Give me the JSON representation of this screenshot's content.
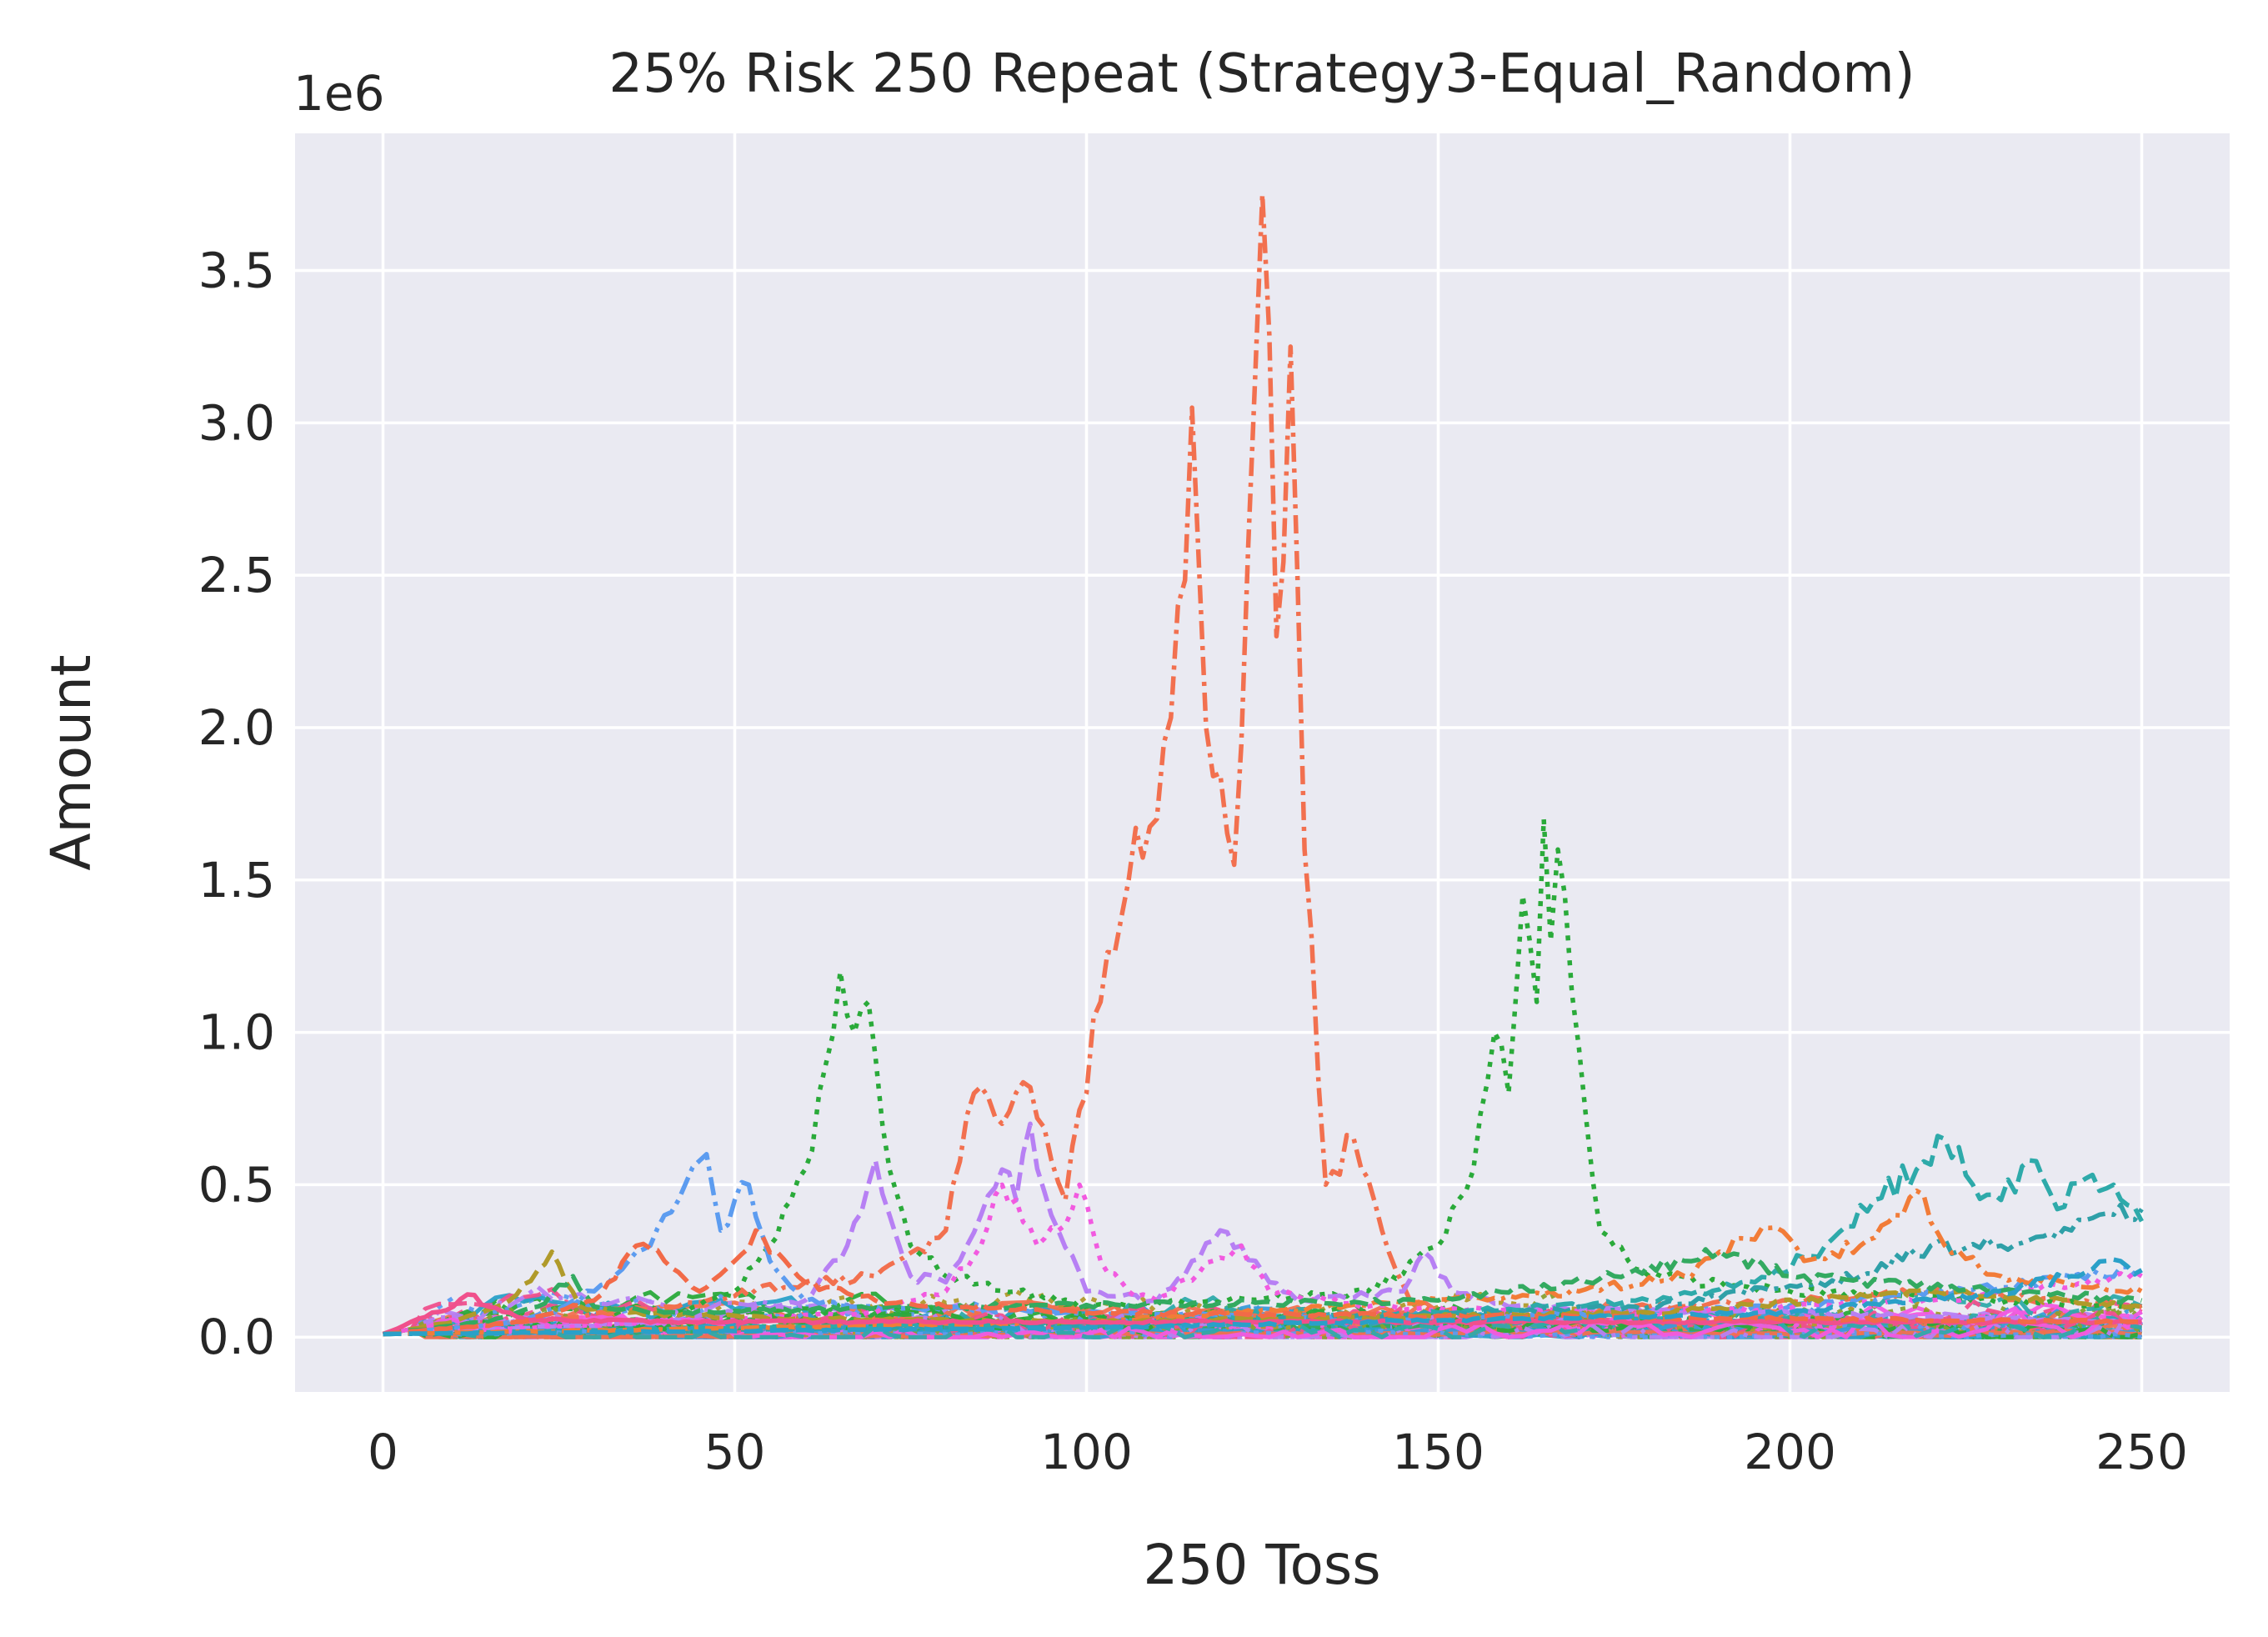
{
  "chart_data": {
    "type": "line",
    "title": "25% Risk 250 Repeat (Strategy3-Equal_Random)",
    "xlabel": "250 Toss",
    "ylabel": "Amount",
    "y_offset_label": "1e6",
    "xlim": [
      -12.5,
      262.5
    ],
    "ylim": [
      -0.18,
      3.95
    ],
    "xticks": [
      0,
      50,
      100,
      150,
      200,
      250
    ],
    "xtick_labels": [
      "0",
      "50",
      "100",
      "150",
      "200",
      "250"
    ],
    "yticks": [
      0.0,
      0.5,
      1.0,
      1.5,
      2.0,
      2.5,
      3.0,
      3.5
    ],
    "ytick_labels": [
      "0.0",
      "0.5",
      "1.0",
      "1.5",
      "2.0",
      "2.5",
      "3.0",
      "3.5"
    ],
    "y_unit_multiplier": 1000000,
    "grid": true,
    "legend": "none",
    "background": "#eaeaf2",
    "n_series_shown": 250,
    "highlighted_series": [
      {
        "color": "#f2704f",
        "dash": "dashdot",
        "x": [
          0,
          20,
          40,
          60,
          70,
          80,
          84,
          88,
          92,
          97,
          102,
          106,
          110,
          113,
          115,
          117,
          119,
          121,
          123,
          125,
          127,
          129,
          131,
          134,
          138,
          142,
          146,
          150,
          160,
          180,
          200,
          220,
          250
        ],
        "y": [
          0.01,
          0.05,
          0.1,
          0.18,
          0.2,
          0.35,
          0.8,
          0.7,
          0.82,
          0.45,
          1.1,
          1.5,
          1.7,
          2.4,
          3.05,
          2.0,
          1.85,
          1.55,
          2.6,
          3.75,
          2.3,
          3.25,
          1.6,
          0.5,
          0.65,
          0.35,
          0.12,
          0.08,
          0.06,
          0.1,
          0.12,
          0.15,
          0.1
        ]
      },
      {
        "color": "#2aaa3a",
        "dash": "dotted",
        "x": [
          0,
          20,
          40,
          50,
          55,
          60,
          63,
          65,
          67,
          69,
          72,
          75,
          80,
          90,
          100,
          120,
          140,
          150,
          155,
          158,
          160,
          162,
          164,
          165,
          166,
          167,
          168,
          170,
          173,
          180,
          200,
          250
        ],
        "y": [
          0.01,
          0.03,
          0.06,
          0.15,
          0.3,
          0.55,
          0.9,
          1.2,
          1.0,
          1.1,
          0.55,
          0.3,
          0.2,
          0.15,
          0.1,
          0.12,
          0.15,
          0.3,
          0.55,
          1.0,
          0.8,
          1.45,
          1.1,
          1.7,
          1.3,
          1.6,
          1.45,
          0.95,
          0.35,
          0.2,
          0.15,
          0.1
        ]
      },
      {
        "color": "#5c9cf0",
        "dash": "dashdot",
        "x": [
          0,
          20,
          30,
          38,
          42,
          46,
          48,
          50,
          52,
          55,
          60,
          70,
          100,
          150,
          200,
          250
        ],
        "y": [
          0.01,
          0.05,
          0.15,
          0.3,
          0.45,
          0.6,
          0.35,
          0.45,
          0.5,
          0.25,
          0.12,
          0.1,
          0.08,
          0.06,
          0.1,
          0.22
        ]
      },
      {
        "color": "#b780f4",
        "dash": "dashed",
        "x": [
          0,
          40,
          60,
          66,
          70,
          72,
          75,
          80,
          85,
          88,
          90,
          92,
          95,
          100,
          110,
          115,
          119,
          122,
          126,
          130,
          145,
          148,
          152,
          160,
          200,
          250
        ],
        "y": [
          0.01,
          0.05,
          0.12,
          0.3,
          0.58,
          0.4,
          0.2,
          0.18,
          0.4,
          0.55,
          0.45,
          0.7,
          0.4,
          0.15,
          0.12,
          0.25,
          0.35,
          0.3,
          0.18,
          0.12,
          0.15,
          0.28,
          0.15,
          0.1,
          0.08,
          0.05
        ]
      },
      {
        "color": "#f25ae0",
        "dash": "dotted",
        "x": [
          0,
          40,
          70,
          80,
          85,
          88,
          90,
          93,
          96,
          99,
          102,
          106,
          110,
          118,
          122,
          126,
          140,
          180,
          220,
          250
        ],
        "y": [
          0.01,
          0.05,
          0.08,
          0.15,
          0.3,
          0.5,
          0.45,
          0.3,
          0.35,
          0.5,
          0.25,
          0.15,
          0.12,
          0.25,
          0.3,
          0.15,
          0.1,
          0.08,
          0.12,
          0.2
        ]
      },
      {
        "color": "#2eaaaa",
        "dash": "dashed",
        "x": [
          0,
          50,
          100,
          150,
          180,
          195,
          205,
          212,
          218,
          222,
          226,
          230,
          234,
          238,
          242,
          246,
          250
        ],
        "y": [
          0.01,
          0.03,
          0.05,
          0.08,
          0.12,
          0.18,
          0.3,
          0.45,
          0.55,
          0.65,
          0.5,
          0.45,
          0.58,
          0.42,
          0.52,
          0.5,
          0.38
        ]
      },
      {
        "color": "#2fa0a8",
        "dash": "dashdot",
        "x": [
          0,
          100,
          180,
          210,
          220,
          230,
          240,
          250
        ],
        "y": [
          0.01,
          0.04,
          0.1,
          0.2,
          0.3,
          0.3,
          0.35,
          0.42
        ]
      },
      {
        "color": "#f27c38",
        "dash": "dashdot",
        "x": [
          0,
          100,
          170,
          185,
          190,
          195,
          198,
          202,
          210,
          215,
          218,
          222,
          230,
          250
        ],
        "y": [
          0.01,
          0.05,
          0.15,
          0.2,
          0.28,
          0.32,
          0.36,
          0.25,
          0.3,
          0.4,
          0.48,
          0.3,
          0.2,
          0.15
        ]
      },
      {
        "color": "#b09a2a",
        "dash": "dashed",
        "x": [
          0,
          10,
          18,
          22,
          24,
          26,
          28,
          35,
          45,
          60,
          100,
          180,
          220,
          250
        ],
        "y": [
          0.01,
          0.05,
          0.12,
          0.22,
          0.28,
          0.18,
          0.1,
          0.08,
          0.07,
          0.06,
          0.05,
          0.08,
          0.15,
          0.1
        ]
      },
      {
        "color": "#33aa60",
        "dash": "dashed",
        "x": [
          0,
          15,
          22,
          27,
          30,
          40,
          80,
          150,
          175,
          185,
          190,
          200,
          250
        ],
        "y": [
          0.01,
          0.05,
          0.1,
          0.2,
          0.1,
          0.08,
          0.1,
          0.12,
          0.2,
          0.25,
          0.28,
          0.2,
          0.12
        ]
      },
      {
        "color": "#f0508c",
        "dash": "solid",
        "x": [
          0,
          5,
          10,
          12,
          15,
          20,
          40,
          100,
          150,
          200,
          250
        ],
        "y": [
          0.01,
          0.06,
          0.1,
          0.14,
          0.1,
          0.06,
          0.05,
          0.05,
          0.05,
          0.05,
          0.05
        ]
      },
      {
        "color": "#f26a48",
        "dash": "dashed",
        "x": [
          0,
          20,
          30,
          36,
          40,
          45,
          50,
          53,
          56,
          60,
          70,
          100,
          250
        ],
        "y": [
          0.01,
          0.05,
          0.12,
          0.3,
          0.25,
          0.15,
          0.25,
          0.35,
          0.28,
          0.18,
          0.12,
          0.08,
          0.05
        ]
      },
      {
        "color": "#2aa0c8",
        "dash": "dashed",
        "x": [
          0,
          100,
          200,
          230,
          240,
          245,
          250
        ],
        "y": [
          0.01,
          0.03,
          0.08,
          0.15,
          0.2,
          0.25,
          0.22
        ]
      }
    ],
    "background_series_colors": [
      "#f2704f",
      "#2aaa3a",
      "#5c9cf0",
      "#b780f4",
      "#f25ae0",
      "#2eaaaa",
      "#b09a2a",
      "#33aa60",
      "#2aa0c8",
      "#f0508c",
      "#88a030",
      "#3a9cd8"
    ]
  }
}
